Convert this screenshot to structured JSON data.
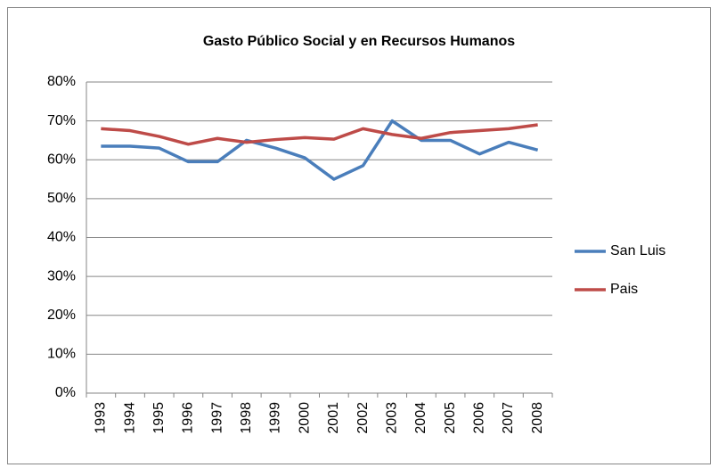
{
  "chart_data": {
    "type": "line",
    "title": "Gasto Público Social y en Recursos Humanos",
    "categories": [
      "1993",
      "1994",
      "1995",
      "1996",
      "1997",
      "1998",
      "1999",
      "2000",
      "2001",
      "2002",
      "2003",
      "2004",
      "2005",
      "2006",
      "2007",
      "2008"
    ],
    "series": [
      {
        "name": "San Luis",
        "color": "#4a7ebb",
        "values": [
          63.5,
          63.5,
          63,
          59.5,
          59.5,
          65,
          63,
          60.5,
          55,
          58.5,
          70,
          65,
          65,
          61.5,
          64.5,
          62.5
        ]
      },
      {
        "name": "Pais",
        "color": "#be4b48",
        "values": [
          68,
          67.5,
          66,
          64,
          65.5,
          64.5,
          65.2,
          65.7,
          65.3,
          68,
          66.5,
          65.5,
          67,
          67.5,
          68,
          69
        ]
      }
    ],
    "ylim": [
      0,
      80
    ],
    "yticks": [
      {
        "value": 0,
        "label": "0%"
      },
      {
        "value": 10,
        "label": "10%"
      },
      {
        "value": 20,
        "label": "20%"
      },
      {
        "value": 30,
        "label": "30%"
      },
      {
        "value": 40,
        "label": "40%"
      },
      {
        "value": 50,
        "label": "50%"
      },
      {
        "value": 60,
        "label": "60%"
      },
      {
        "value": 70,
        "label": "70%"
      },
      {
        "value": 80,
        "label": "80%"
      }
    ],
    "grid": true,
    "legend": "right"
  }
}
